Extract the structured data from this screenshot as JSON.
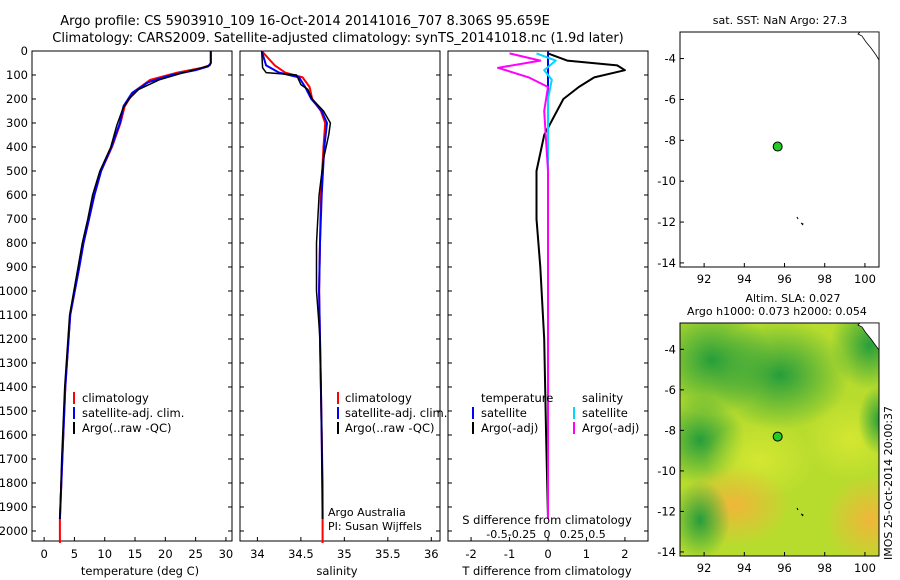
{
  "header": {
    "line1": "Argo profile: CS 5903910_109 16-Oct-2014 20141016_707 8.306S 95.659E",
    "line2": "Climatology: CARS2009. Satellite-adjusted climatology: synTS_20141018.nc (1.9d later)"
  },
  "colors": {
    "climatology": "#ff0000",
    "satellite_adj": "#0000ff",
    "argo": "#000000",
    "s_satellite": "#00d8ff",
    "s_argo": "#ff00ff",
    "argo_marker": "#22cc22"
  },
  "depth_ticks": [
    0,
    100,
    200,
    300,
    400,
    500,
    600,
    700,
    800,
    900,
    1000,
    1100,
    1200,
    1300,
    1400,
    1500,
    1600,
    1700,
    1800,
    1900,
    2000
  ],
  "temp_panel": {
    "xlabel": "temperature (deg C)",
    "xticks": [
      "0",
      "5",
      "10",
      "15",
      "20",
      "25",
      "30"
    ],
    "legend": [
      "climatology",
      "satellite-adj. clim.",
      "Argo(..raw -QC)"
    ]
  },
  "sal_panel": {
    "xlabel": "salinity",
    "xticks": [
      "34",
      "34.5",
      "35",
      "35.5",
      "36"
    ],
    "legend": [
      "climatology",
      "satellite-adj. clim.",
      "Argo(..raw -QC)"
    ],
    "credit1": "Argo Australia",
    "credit2": "PI: Susan Wijffels"
  },
  "diff_panel": {
    "xlabel": "T difference from climatology",
    "xticks": [
      "-2",
      "-1",
      "0",
      "1",
      "2"
    ],
    "top_label": "S difference from climatology",
    "top_ticks": [
      "-0.5",
      "-0.25",
      "0",
      "0.25",
      "0.5"
    ],
    "legend_t_title": "temperature",
    "legend_s_title": "salinity",
    "legend_t": [
      "satellite",
      "Argo(-adj)"
    ],
    "legend_s": [
      "satellite",
      "Argo(-adj)"
    ]
  },
  "map_sst": {
    "title": "sat. SST: NaN Argo: 27.3",
    "xticks": [
      "92",
      "94",
      "96",
      "98",
      "100"
    ],
    "yticks": [
      "-4",
      "-6",
      "-8",
      "-10",
      "-12",
      "-14"
    ]
  },
  "map_sla": {
    "title1": "Altim. SLA: 0.027",
    "title2": "Argo h1000: 0.073 h2000: 0.054",
    "xticks": [
      "92",
      "94",
      "96",
      "98",
      "100"
    ],
    "yticks": [
      "-4",
      "-6",
      "-8",
      "-10",
      "-12",
      "-14"
    ]
  },
  "footer_vertical": "IMOS 25-Oct-2014 20:00:37",
  "chart_data": [
    {
      "type": "line",
      "xlabel": "temperature (deg C)",
      "xlim": [
        -2,
        31
      ],
      "ylim": [
        2050,
        0
      ],
      "series": [
        {
          "name": "climatology",
          "x": [
            27.5,
            27.5,
            27.3,
            26.0,
            22.0,
            17.5,
            14.8,
            13.3,
            12.6,
            11.2,
            9.4,
            8.3,
            7.4,
            6.5,
            5.8,
            4.3,
            3.5,
            3.0,
            2.6,
            2.6
          ],
          "y": [
            0,
            50,
            60,
            70,
            90,
            120,
            170,
            230,
            300,
            400,
            500,
            600,
            700,
            800,
            900,
            1100,
            1400,
            1700,
            1950,
            2050
          ]
        },
        {
          "name": "satellite-adj. clim.",
          "x": [
            27.5,
            27.5,
            27.0,
            25.0,
            21.0,
            17.2,
            14.5,
            13.1,
            12.5,
            11.1,
            9.4,
            8.3,
            7.4,
            6.5,
            5.8,
            4.3,
            3.5,
            3.0,
            2.6
          ],
          "y": [
            0,
            50,
            65,
            80,
            100,
            130,
            175,
            230,
            300,
            400,
            500,
            600,
            700,
            800,
            900,
            1100,
            1400,
            1700,
            1950
          ]
        },
        {
          "name": "Argo(..raw -QC)",
          "x": [
            27.5,
            27.5,
            27.3,
            26.0,
            23.0,
            19.0,
            15.6,
            14.0,
            13.0,
            12.0,
            11.0,
            9.2,
            8.0,
            7.2,
            6.3,
            5.6,
            4.2,
            3.4,
            2.9,
            2.6
          ],
          "y": [
            0,
            50,
            60,
            70,
            90,
            120,
            160,
            200,
            240,
            310,
            400,
            500,
            600,
            700,
            800,
            900,
            1100,
            1400,
            1700,
            1950
          ]
        }
      ]
    },
    {
      "type": "line",
      "xlabel": "salinity",
      "xlim": [
        33.8,
        36.1
      ],
      "ylim": [
        2050,
        0
      ],
      "series": [
        {
          "name": "climatology",
          "x": [
            34.05,
            34.2,
            34.32,
            34.52,
            34.6,
            34.63,
            34.73,
            34.78,
            34.76,
            34.73,
            34.72,
            34.71,
            34.72,
            34.73,
            34.74,
            34.75,
            34.75
          ],
          "y": [
            0,
            60,
            90,
            110,
            150,
            200,
            250,
            300,
            400,
            600,
            800,
            1000,
            1200,
            1400,
            1600,
            1800,
            2050
          ]
        },
        {
          "name": "satellite-adj. clim.",
          "x": [
            34.05,
            34.1,
            34.25,
            34.48,
            34.55,
            34.62,
            34.74,
            34.8,
            34.77,
            34.74,
            34.72,
            34.71,
            34.72,
            34.73,
            34.74,
            34.75
          ],
          "y": [
            0,
            60,
            90,
            110,
            150,
            200,
            250,
            300,
            400,
            600,
            800,
            1000,
            1200,
            1400,
            1600,
            1950
          ]
        },
        {
          "name": "Argo(..raw -QC)",
          "x": [
            34.05,
            34.06,
            34.1,
            34.45,
            34.5,
            34.58,
            34.63,
            34.76,
            34.84,
            34.82,
            34.76,
            34.71,
            34.68,
            34.68,
            34.7,
            34.72,
            34.73,
            34.74,
            34.75
          ],
          "y": [
            0,
            70,
            90,
            100,
            140,
            160,
            200,
            250,
            300,
            350,
            450,
            600,
            800,
            1000,
            1100,
            1200,
            1400,
            1600,
            1950
          ]
        }
      ]
    },
    {
      "type": "line",
      "xlabel": "T difference from climatology",
      "xlim": [
        -2.6,
        2.6
      ],
      "ylim": [
        2050,
        0
      ],
      "series": [
        {
          "name": "temperature satellite",
          "x": [
            0.0,
            0.0,
            0.0,
            0.0,
            0.0
          ],
          "y": [
            0,
            500,
            1000,
            1500,
            1950
          ]
        },
        {
          "name": "temperature Argo(-adj)",
          "x": [
            0.0,
            0.5,
            1.8,
            2.0,
            1.2,
            0.8,
            0.4,
            0.2,
            -0.1,
            -0.3,
            -0.3,
            -0.2,
            -0.1,
            -0.05,
            0.0
          ],
          "y": [
            10,
            40,
            60,
            80,
            110,
            150,
            200,
            260,
            350,
            500,
            700,
            900,
            1200,
            1600,
            1950
          ]
        },
        {
          "name": "salinity satellite",
          "x": [
            -0.3,
            0.2,
            -0.1,
            0.1,
            0.0,
            0.0,
            0.0
          ],
          "y": [
            10,
            40,
            80,
            120,
            200,
            500,
            1950
          ]
        },
        {
          "name": "salinity Argo(-adj)",
          "x": [
            -1.0,
            -0.2,
            -1.3,
            -0.5,
            0.0,
            -0.1,
            0.0,
            0.0
          ],
          "y": [
            10,
            40,
            70,
            110,
            150,
            250,
            500,
            1950
          ]
        }
      ]
    },
    {
      "type": "scatter",
      "title": "sat. SST: NaN Argo: 27.3",
      "xlim": [
        90.8,
        100.7
      ],
      "ylim": [
        -14.2,
        -2.7
      ],
      "points": [
        {
          "x": 95.659,
          "y": -8.306
        }
      ]
    },
    {
      "type": "heatmap",
      "title": "Altim. SLA: 0.027",
      "xlim": [
        90.8,
        100.7
      ],
      "ylim": [
        -14.2,
        -2.7
      ],
      "points": [
        {
          "x": 95.659,
          "y": -8.306
        }
      ]
    }
  ]
}
